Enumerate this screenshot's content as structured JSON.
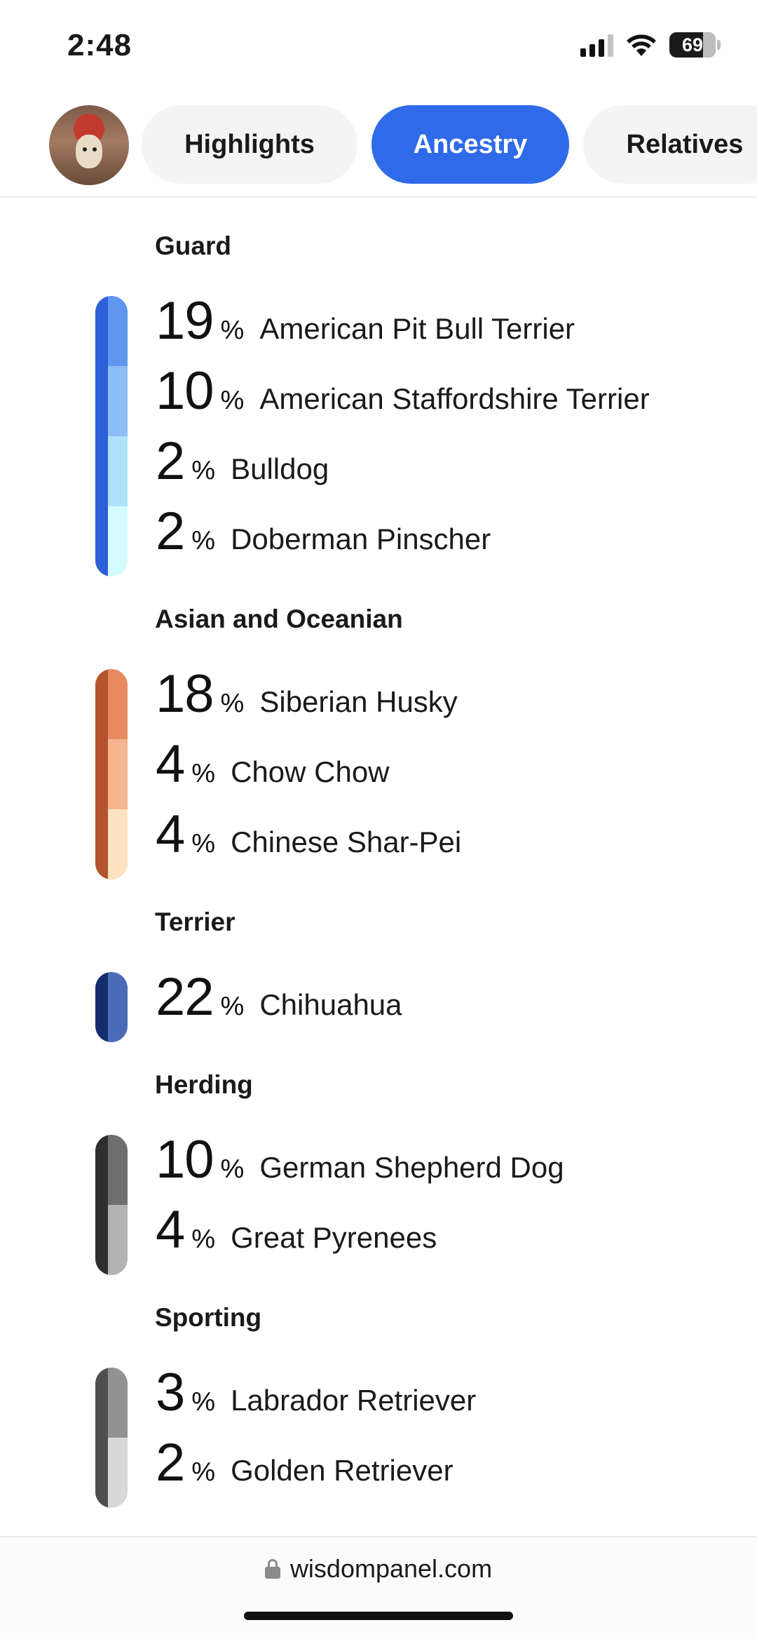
{
  "status": {
    "time": "2:48",
    "battery": "69"
  },
  "tabs": [
    {
      "label": "Highlights",
      "active": false
    },
    {
      "label": "Ancestry",
      "active": true
    },
    {
      "label": "Relatives",
      "active": false
    }
  ],
  "colors": {
    "accent": "#2f6ae9"
  },
  "groups": [
    {
      "title": "Guard",
      "dark": "#2c5fd8",
      "segments": [
        "#5e96f0",
        "#8dbdf5",
        "#aee3fb",
        "#d4fbff"
      ],
      "breeds": [
        {
          "pct": "19",
          "sign": "%",
          "name": "American Pit Bull Terrier"
        },
        {
          "pct": "10",
          "sign": "%",
          "name": "American Staffordshire Terrier"
        },
        {
          "pct": "2",
          "sign": "%",
          "name": "Bulldog"
        },
        {
          "pct": "2",
          "sign": "%",
          "name": "Doberman Pinscher"
        }
      ]
    },
    {
      "title": "Asian and Oceanian",
      "dark": "#b4532e",
      "segments": [
        "#e88a60",
        "#f5b58e",
        "#fde3c2"
      ],
      "breeds": [
        {
          "pct": "18",
          "sign": "%",
          "name": "Siberian Husky"
        },
        {
          "pct": "4",
          "sign": "%",
          "name": "Chow Chow"
        },
        {
          "pct": "4",
          "sign": "%",
          "name": "Chinese Shar-Pei"
        }
      ]
    },
    {
      "title": "Terrier",
      "dark": "#142d6e",
      "segments": [
        "#4a6bb8"
      ],
      "breeds": [
        {
          "pct": "22",
          "sign": "%",
          "name": "Chihuahua"
        }
      ]
    },
    {
      "title": "Herding",
      "dark": "#2f2f2f",
      "segments": [
        "#6e6e6e",
        "#b3b3b3"
      ],
      "breeds": [
        {
          "pct": "10",
          "sign": "%",
          "name": "German Shepherd Dog"
        },
        {
          "pct": "4",
          "sign": "%",
          "name": "Great Pyrenees"
        }
      ]
    },
    {
      "title": "Sporting",
      "dark": "#4f4f4f",
      "segments": [
        "#929292",
        "#d8d8d8"
      ],
      "breeds": [
        {
          "pct": "3",
          "sign": "%",
          "name": "Labrador Retriever"
        },
        {
          "pct": "2",
          "sign": "%",
          "name": "Golden Retriever"
        }
      ]
    }
  ],
  "browser": {
    "url": "wisdompanel.com"
  }
}
